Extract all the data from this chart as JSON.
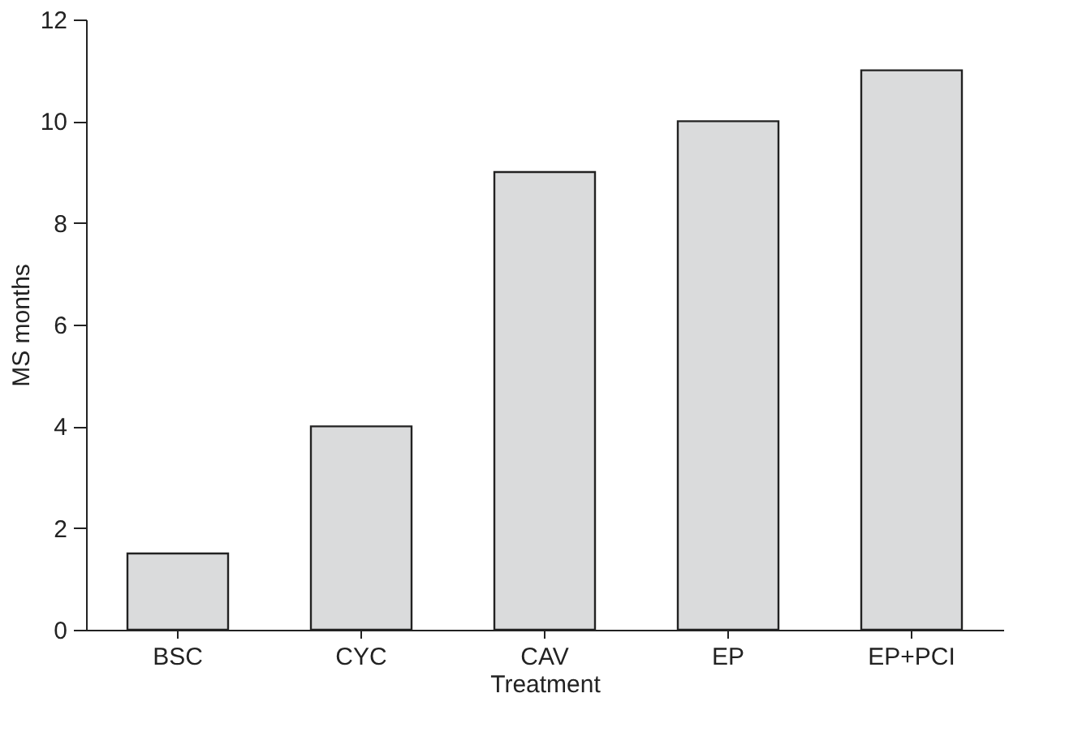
{
  "chart_data": {
    "type": "bar",
    "xlabel": "Treatment",
    "ylabel": "MS months",
    "categories": [
      "BSC",
      "CYC",
      "CAV",
      "EP",
      "EP+PCI"
    ],
    "values": [
      1.5,
      4,
      9,
      10,
      11
    ],
    "color": "#dadbdc",
    "ylim": [
      0,
      12
    ],
    "yticks": [
      0,
      2,
      4,
      6,
      8,
      10,
      12
    ],
    "grid": false
  }
}
